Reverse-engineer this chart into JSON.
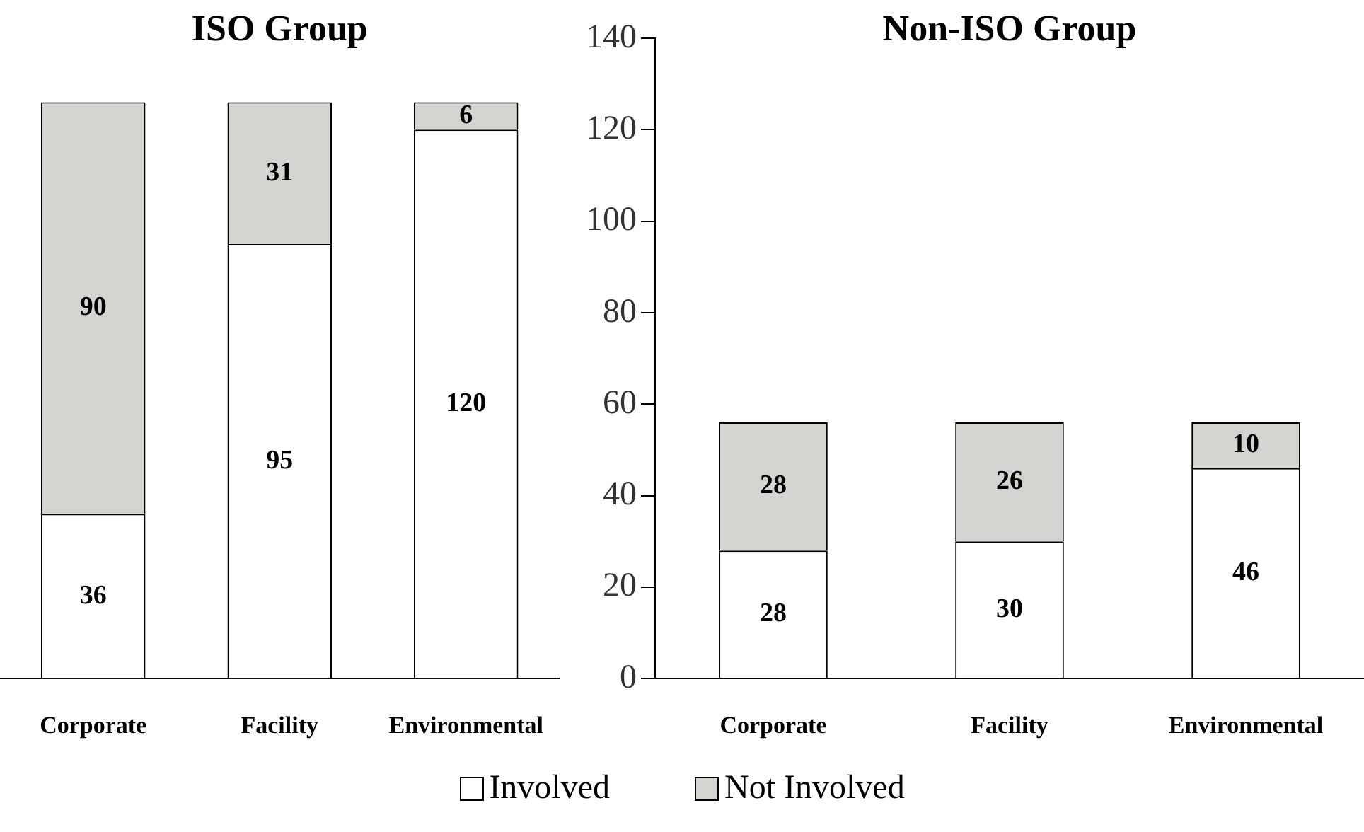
{
  "chart_data": [
    {
      "type": "bar",
      "title": "ISO Group",
      "categories": [
        "Corporate",
        "Facility",
        "Environmental"
      ],
      "stacked": true,
      "data_labels": true,
      "legend": "bottom",
      "tick_labels": "x",
      "ylim": [
        0,
        140
      ],
      "yticks": [
        0,
        20,
        40,
        60,
        80,
        100,
        120,
        140
      ],
      "series": [
        {
          "name": "Involved",
          "color": "#ffffff",
          "values": [
            36,
            95,
            120
          ]
        },
        {
          "name": "Not Involved",
          "color": "#d4d4d0",
          "values": [
            90,
            31,
            6
          ]
        }
      ]
    },
    {
      "type": "bar",
      "title": "Non-ISO Group",
      "categories": [
        "Corporate",
        "Facility",
        "Environmental"
      ],
      "stacked": true,
      "data_labels": true,
      "ylim": [
        0,
        140
      ],
      "yticks": [
        0,
        20,
        40,
        60,
        80,
        100,
        120,
        140
      ],
      "series": [
        {
          "color": "#ffffff",
          "values": [
            28,
            30,
            46
          ]
        },
        {
          "color": "#d4d4d0",
          "values": [
            28,
            26,
            10
          ]
        }
      ]
    }
  ]
}
